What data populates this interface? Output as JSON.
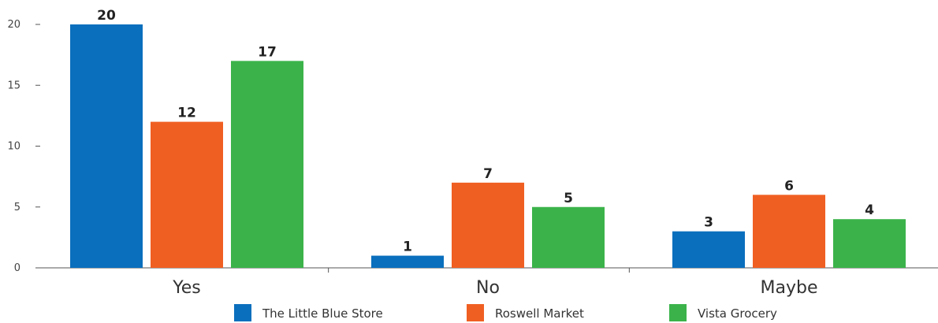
{
  "chart_data": {
    "type": "bar",
    "title": "",
    "xlabel": "",
    "ylabel": "",
    "categories": [
      "Yes",
      "No",
      "Maybe"
    ],
    "ylim": [
      0,
      20
    ],
    "yticks": [
      "0",
      "5",
      "10",
      "15",
      "20"
    ],
    "grid": false,
    "legend_position": "bottom",
    "series": [
      {
        "name": "The Little Blue Store",
        "color": "#0a6fbd",
        "values": [
          20,
          1,
          3
        ]
      },
      {
        "name": "Roswell Market",
        "color": "#f05f22",
        "values": [
          12,
          7,
          6
        ]
      },
      {
        "name": "Vista Grocery",
        "color": "#3bb34a",
        "values": [
          17,
          5,
          4
        ]
      }
    ]
  }
}
